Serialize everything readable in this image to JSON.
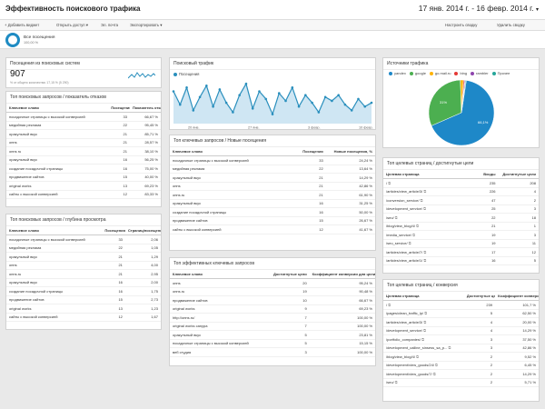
{
  "header": {
    "title": "Эффективность поискового трафика",
    "date_range": "17 янв. 2014 г. - 16 февр. 2014 г."
  },
  "toolbar": {
    "add_widget": "+ Добавить виджет",
    "share": "Открыть доступ ▾",
    "email": "Эл. почта",
    "export": "Экспортировать ▾",
    "customize": "Настроить сводку",
    "delete": "Удалить сводку"
  },
  "segment": {
    "name": "Все посещения",
    "pct": "100,00 %"
  },
  "visits_widget": {
    "title": "Посещения из поисковых систем",
    "value": "907",
    "sub": "% от общего количества: 17,15 % (5 290)"
  },
  "traffic_widget": {
    "title": "Поисковый трафик",
    "legend": "Посещения",
    "x_labels": [
      "20 янв.",
      "27 янв.",
      "3 февр.",
      "10 февр."
    ]
  },
  "sources_widget": {
    "title": "Источники трафика",
    "legend": [
      "yandex",
      "google",
      "go.mail.ru",
      "bing",
      "rambler",
      "Прочее"
    ],
    "slices": [
      {
        "label": "yandex",
        "value": 66.1,
        "color": "#1e88c8"
      },
      {
        "label": "google",
        "value": 31.0,
        "color": "#4caf50"
      },
      {
        "label": "go.mail.ru",
        "value": 1.5,
        "color": "#ffb300"
      },
      {
        "label": "bing",
        "value": 0.6,
        "color": "#e53935"
      },
      {
        "label": "rambler",
        "value": 0.4,
        "color": "#8e44ad"
      },
      {
        "label": "Прочее",
        "value": 0.4,
        "color": "#26a69a"
      }
    ],
    "labels": [
      "66,1%",
      "31%"
    ]
  },
  "bounce_table": {
    "title": "Топ поисковых запросов / показатель отказов",
    "headers": [
      "Ключевое слово",
      "Посещения",
      "Показатель отказов"
    ],
    "rows": [
      [
        "посадочные страницы с высокой конверсией",
        "33",
        "66,67 %"
      ],
      [
        "медийная реклама",
        "22",
        "95,45 %"
      ],
      [
        "оракульный вкус",
        "21",
        "85,71 %"
      ],
      [
        "опнs",
        "21",
        "28,57 %"
      ],
      [
        "опнs ru",
        "21",
        "38,10 %"
      ],
      [
        "оракульный вкус",
        "16",
        "56,25 %"
      ],
      [
        "создание посадочной страницы",
        "16",
        "75,00 %"
      ],
      [
        "продвижение сайтов",
        "15",
        "40,00 %"
      ],
      [
        "original works",
        "13",
        "69,23 %"
      ],
      [
        "сайты с высокой конверсией",
        "12",
        "83,33 %"
      ]
    ]
  },
  "depth_table": {
    "title": "Топ поисковых запросов / глубина просмотра",
    "headers": [
      "Ключевое слово",
      "Посещения",
      "Страниц/посещение"
    ],
    "rows": [
      [
        "посадочные страницы с высокой конверсией",
        "33",
        "2,06"
      ],
      [
        "медийная реклама",
        "22",
        "1,05"
      ],
      [
        "оракульный вкус",
        "21",
        "1,29"
      ],
      [
        "опнs",
        "21",
        "4,00"
      ],
      [
        "опнs.ru",
        "21",
        "2,95"
      ],
      [
        "оракульный вкус",
        "16",
        "2,00"
      ],
      [
        "создание посадочной страницы",
        "16",
        "1,75"
      ],
      [
        "продвижение сайтов",
        "15",
        "2,73"
      ],
      [
        "original works",
        "13",
        "1,23"
      ],
      [
        "сайты с высокой конверсией",
        "12",
        "1,67"
      ]
    ]
  },
  "new_visits_table": {
    "title": "Топ ключевых запросов / Новые посещения",
    "headers": [
      "Ключевое слово",
      "Посещения",
      "Новые посещения, %"
    ],
    "rows": [
      [
        "посадочные страницы с высокой конверсией",
        "33",
        "24,24 %"
      ],
      [
        "медийная реклама",
        "22",
        "13,64 %"
      ],
      [
        "оракульный вкус",
        "21",
        "14,29 %"
      ],
      [
        "опнs",
        "21",
        "42,86 %"
      ],
      [
        "опнs.ru",
        "21",
        "61,90 %"
      ],
      [
        "оракульный вкус",
        "16",
        "31,25 %"
      ],
      [
        "создание посадочной страницы",
        "16",
        "50,00 %"
      ],
      [
        "продвижение сайтов",
        "15",
        "26,67 %"
      ],
      [
        "сайты с высокой конверсией",
        "12",
        "41,67 %"
      ]
    ]
  },
  "conv_table": {
    "title": "Топ эффективных ключевых запросов",
    "headers": [
      "Ключевое слово",
      "Достигнутые цели",
      "Коэффициент конверсии для цели"
    ],
    "rows": [
      [
        "опнs",
        "20",
        "95,24 %"
      ],
      [
        "опнs.ru",
        "19",
        "90,48 %"
      ],
      [
        "продвижение сайтов",
        "10",
        "66,67 %"
      ],
      [
        "original works",
        "9",
        "69,23 %"
      ],
      [
        "http://опнs.ru/",
        "7",
        "100,00 %"
      ],
      [
        "original works саnypa",
        "7",
        "100,00 %"
      ],
      [
        "оракульный вкус",
        "5",
        "23,81 %"
      ],
      [
        "посадочные страницы с высокой конверсией",
        "5",
        "15,15 %"
      ],
      [
        "веб студия",
        "3",
        "100,00 %"
      ]
    ]
  },
  "landing_table": {
    "title": "Топ целевых страниц / достигнутые цели",
    "headers": [
      "Целевая страница",
      "Входы",
      "Достигнутые цели"
    ],
    "rows": [
      [
        "/",
        "235",
        "208"
      ],
      [
        "/articles/view_article/3/",
        "226",
        "4"
      ],
      [
        "/conversion_service/",
        "47",
        "2"
      ],
      [
        "/development_service/",
        "25",
        "3"
      ],
      [
        "/seo/",
        "22",
        "18"
      ],
      [
        "/blog/view_blog/4/",
        "21",
        "1"
      ],
      [
        "/media_service/",
        "19",
        "3"
      ],
      [
        "/seo_service/",
        "19",
        "11"
      ],
      [
        "/articles/view_article/7/",
        "17",
        "12"
      ],
      [
        "/articles/view_article/1/",
        "16",
        "5"
      ]
    ]
  },
  "landing_conv_table": {
    "title": "Топ целевых страниц / конверсия",
    "headers": [
      "Целевая страница",
      "Достигнутые цели",
      "Коэффициент конверсии для цели"
    ],
    "rows": [
      [
        "/",
        "239",
        "101,7 %"
      ],
      [
        "/pages/clean_traffic_lp/",
        "5",
        "62,50 %"
      ],
      [
        "/articles/view_article/3/",
        "4",
        "20,00 %"
      ],
      [
        "/development_service/",
        "4",
        "14,29 %"
      ],
      [
        "/portfolio_companies/",
        "3",
        "37,50 %"
      ],
      [
        "/development_calline_sinsess_sa_p...",
        "3",
        "42,86 %"
      ],
      [
        "/blog/view_blog/4/",
        "2",
        "9,52 %"
      ],
      [
        "/development/view_goods/24/",
        "2",
        "6,45 %"
      ],
      [
        "/development/view_goods/7/",
        "2",
        "14,29 %"
      ],
      [
        "/seo/",
        "2",
        "5,71 %"
      ]
    ]
  },
  "colors": {
    "accent": "#1e88c8",
    "line": "#2a8fbd",
    "area": "#cfe6f3"
  }
}
